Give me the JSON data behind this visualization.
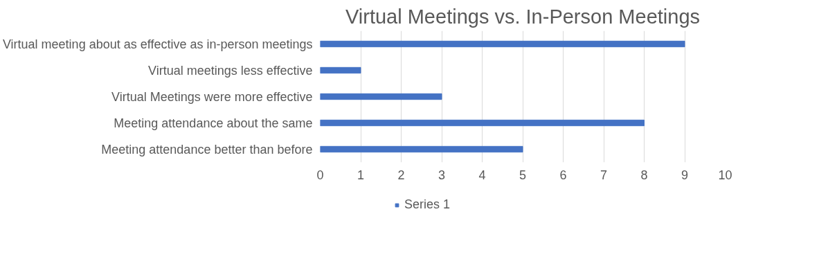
{
  "chart_data": {
    "type": "bar",
    "orientation": "horizontal",
    "title": "Virtual Meetings vs. In-Person Meetings",
    "categories": [
      "Virtual meeting about as effective as in-person meetings",
      "Virtual meetings less effective",
      "Virtual Meetings were more effective",
      "Meeting attendance about the same",
      "Meeting attendance better than before"
    ],
    "series": [
      {
        "name": "Series 1",
        "color": "#4472c4",
        "values": [
          9,
          1,
          3,
          8,
          5
        ]
      }
    ],
    "xlim": [
      0,
      10
    ],
    "xticks": [
      0,
      1,
      2,
      3,
      4,
      5,
      6,
      7,
      8,
      9,
      10
    ],
    "grid": "x",
    "legend": "bottom"
  }
}
